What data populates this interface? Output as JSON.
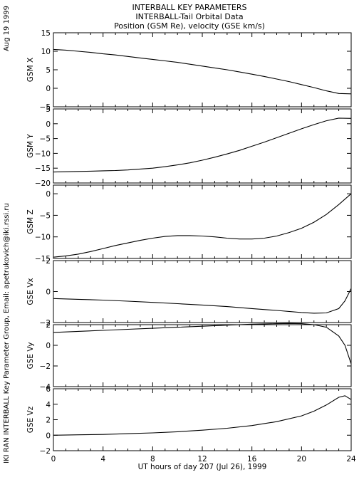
{
  "header": {
    "date": "Aug 19 1999",
    "title_lines": [
      "INTERBALL KEY PARAMETERS",
      "INTERBALL-Tail Orbital Data",
      "Position (GSM Re), velocity (GSE km/s)"
    ]
  },
  "credit": "IKI RAN INTERBALL Key Parameter Group, Email: apetrukovich@iki.rssi.ru",
  "chart_data": {
    "type": "line",
    "title": "INTERBALL KEY PARAMETERS / INTERBALL-Tail Orbital Data / Position (GSM Re), velocity (GSE km/s)",
    "xlabel": "UT hours of day 207 (Jul 26), 1999",
    "xlim": [
      0,
      24
    ],
    "xticks": [
      0,
      4,
      8,
      12,
      16,
      20,
      24
    ],
    "grid": false,
    "panels": [
      {
        "ylabel": "GSM X",
        "ylim": [
          -5,
          15
        ],
        "yticks": [
          -5,
          0,
          5,
          10,
          15
        ],
        "x": [
          0,
          1,
          2,
          3,
          4,
          5,
          6,
          7,
          8,
          9,
          10,
          11,
          12,
          13,
          14,
          15,
          16,
          17,
          18,
          19,
          20,
          21,
          22,
          23,
          24
        ],
        "y": [
          10.5,
          10.3,
          10.0,
          9.7,
          9.3,
          9.0,
          8.6,
          8.2,
          7.8,
          7.4,
          7.0,
          6.5,
          6.0,
          5.5,
          5.0,
          4.4,
          3.8,
          3.2,
          2.5,
          1.8,
          1.0,
          0.2,
          -0.7,
          -1.4,
          -1.5
        ]
      },
      {
        "ylabel": "GSM Y",
        "ylim": [
          -20,
          5
        ],
        "yticks": [
          -20,
          -15,
          -10,
          -5,
          0,
          5
        ],
        "x": [
          0,
          1,
          2,
          3,
          4,
          5,
          6,
          7,
          8,
          9,
          10,
          11,
          12,
          13,
          14,
          15,
          16,
          17,
          18,
          19,
          20,
          21,
          22,
          23,
          24
        ],
        "y": [
          -16.3,
          -16.2,
          -16.1,
          -16.0,
          -15.9,
          -15.8,
          -15.6,
          -15.3,
          -15.0,
          -14.5,
          -13.9,
          -13.2,
          -12.3,
          -11.3,
          -10.2,
          -9.0,
          -7.6,
          -6.2,
          -4.7,
          -3.2,
          -1.7,
          -0.3,
          1.0,
          1.9,
          1.8
        ]
      },
      {
        "ylabel": "GSM Z",
        "ylim": [
          -15,
          2
        ],
        "yticks": [
          -15,
          -10,
          -5,
          0
        ],
        "x": [
          0,
          1,
          2,
          3,
          4,
          5,
          6,
          7,
          8,
          9,
          10,
          11,
          12,
          13,
          14,
          15,
          16,
          17,
          18,
          19,
          20,
          21,
          22,
          23,
          24
        ],
        "y": [
          -14.7,
          -14.4,
          -14.0,
          -13.4,
          -12.7,
          -12.0,
          -11.4,
          -10.8,
          -10.3,
          -9.9,
          -9.7,
          -9.7,
          -9.8,
          -10.0,
          -10.3,
          -10.5,
          -10.5,
          -10.3,
          -9.8,
          -9.0,
          -8.0,
          -6.6,
          -4.8,
          -2.5,
          0.0
        ]
      },
      {
        "ylabel": "GSE Vx",
        "ylim": [
          -2,
          2
        ],
        "yticks": [
          -2,
          0,
          2
        ],
        "x": [
          0,
          2,
          4,
          6,
          8,
          10,
          12,
          14,
          16,
          18,
          20,
          21,
          22,
          23,
          23.5,
          24
        ],
        "y": [
          -0.45,
          -0.5,
          -0.55,
          -0.62,
          -0.7,
          -0.78,
          -0.87,
          -0.97,
          -1.1,
          -1.22,
          -1.35,
          -1.4,
          -1.38,
          -1.1,
          -0.6,
          0.2
        ]
      },
      {
        "ylabel": "GSE Vy",
        "ylim": [
          -4,
          2
        ],
        "yticks": [
          -4,
          -2,
          0,
          2
        ],
        "x": [
          0,
          2,
          4,
          6,
          8,
          10,
          12,
          14,
          16,
          18,
          19,
          20,
          21,
          22,
          23,
          23.5,
          24
        ],
        "y": [
          1.25,
          1.35,
          1.45,
          1.55,
          1.65,
          1.75,
          1.85,
          1.95,
          2.05,
          2.1,
          2.12,
          2.1,
          2.0,
          1.75,
          0.9,
          0.0,
          -1.8
        ]
      },
      {
        "ylabel": "GSE Vz",
        "ylim": [
          -2,
          6
        ],
        "yticks": [
          -2,
          0,
          2,
          4,
          6
        ],
        "x": [
          0,
          2,
          4,
          6,
          8,
          10,
          12,
          14,
          16,
          18,
          20,
          21,
          22,
          23,
          23.5,
          24
        ],
        "y": [
          0.0,
          0.05,
          0.1,
          0.2,
          0.3,
          0.45,
          0.65,
          0.9,
          1.25,
          1.75,
          2.5,
          3.1,
          3.9,
          4.9,
          5.1,
          4.6
        ]
      }
    ]
  }
}
